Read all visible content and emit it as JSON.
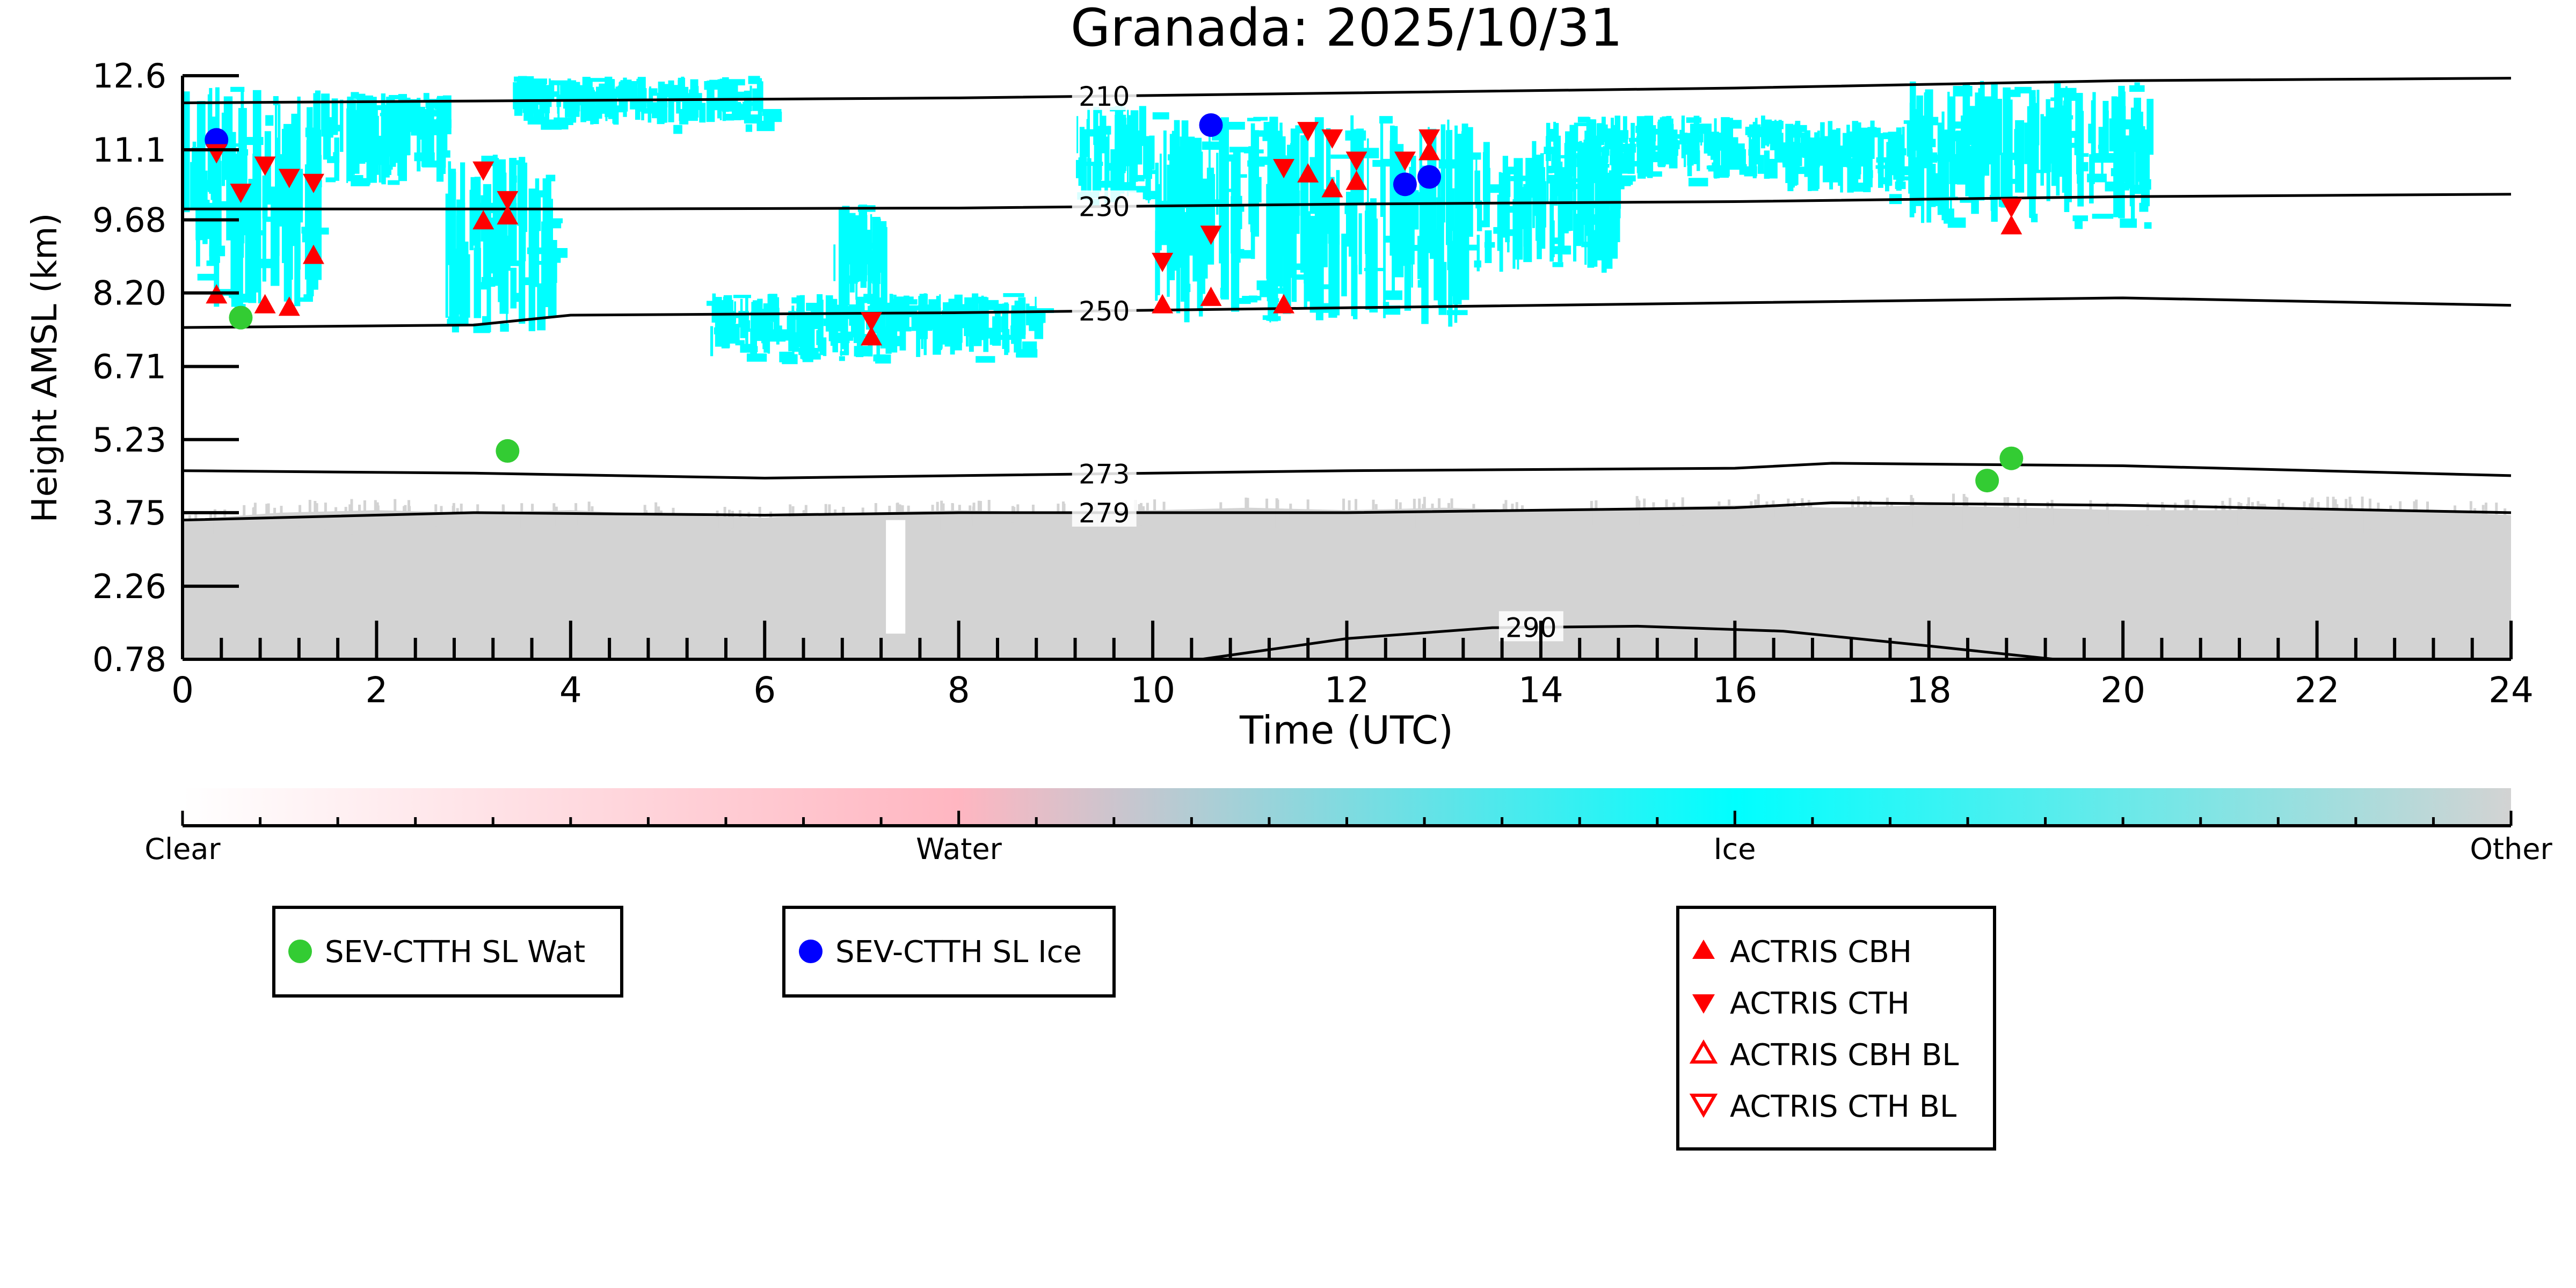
{
  "chart_data": {
    "type": "scatter",
    "title": "Granada: 2025/10/31",
    "xlabel": "Time (UTC)",
    "ylabel": "Height AMSL (km)",
    "xlim": [
      0,
      24
    ],
    "ylim": [
      0.78,
      12.6
    ],
    "x_ticks": [
      "0",
      "2",
      "4",
      "6",
      "8",
      "10",
      "12",
      "14",
      "16",
      "18",
      "20",
      "22",
      "24"
    ],
    "y_ticks": [
      "0.78",
      "2.26",
      "3.75",
      "5.23",
      "6.71",
      "8.20",
      "9.68",
      "11.1",
      "12.6"
    ],
    "y_tick_values": [
      0.78,
      2.26,
      3.75,
      5.23,
      6.71,
      8.2,
      9.68,
      11.1,
      12.6
    ],
    "grid": false,
    "background_classes": {
      "ice_color": "#00FFFF",
      "other_color": "#D3D3D3",
      "water_color": "#FFB6C1",
      "ice_regions": [
        {
          "x": [
            0.0,
            1.4
          ],
          "y": [
            7.9,
            12.4
          ]
        },
        {
          "x": [
            1.4,
            2.7
          ],
          "y": [
            10.4,
            12.3
          ]
        },
        {
          "x": [
            2.7,
            3.8
          ],
          "y": [
            7.4,
            11.0
          ]
        },
        {
          "x": [
            3.4,
            6.0
          ],
          "y": [
            11.6,
            12.6
          ]
        },
        {
          "x": [
            5.4,
            8.8
          ],
          "y": [
            6.9,
            8.2
          ]
        },
        {
          "x": [
            6.7,
            7.2
          ],
          "y": [
            7.8,
            10.0
          ]
        },
        {
          "x": [
            9.2,
            10.0
          ],
          "y": [
            10.0,
            12.0
          ]
        },
        {
          "x": [
            10.0,
            13.3
          ],
          "y": [
            7.5,
            11.8
          ]
        },
        {
          "x": [
            13.3,
            14.8
          ],
          "y": [
            8.6,
            11.3
          ]
        },
        {
          "x": [
            14.0,
            16.5
          ],
          "y": [
            10.5,
            11.8
          ]
        },
        {
          "x": [
            16.5,
            17.8
          ],
          "y": [
            10.2,
            11.7
          ]
        },
        {
          "x": [
            17.8,
            20.3
          ],
          "y": [
            9.6,
            12.5
          ]
        }
      ],
      "other_boundary": [
        {
          "x": 0.0,
          "y": 3.6
        },
        {
          "x": 1.0,
          "y": 3.75
        },
        {
          "x": 2.0,
          "y": 3.8
        },
        {
          "x": 3.0,
          "y": 3.75
        },
        {
          "x": 4.0,
          "y": 3.8
        },
        {
          "x": 5.0,
          "y": 3.7
        },
        {
          "x": 6.0,
          "y": 3.65
        },
        {
          "x": 7.0,
          "y": 3.75
        },
        {
          "x": 8.0,
          "y": 3.8
        },
        {
          "x": 9.0,
          "y": 3.75
        },
        {
          "x": 10.0,
          "y": 3.8
        },
        {
          "x": 11.0,
          "y": 3.85
        },
        {
          "x": 12.0,
          "y": 3.8
        },
        {
          "x": 13.0,
          "y": 3.85
        },
        {
          "x": 14.0,
          "y": 3.8
        },
        {
          "x": 15.0,
          "y": 3.85
        },
        {
          "x": 16.0,
          "y": 3.9
        },
        {
          "x": 17.0,
          "y": 3.85
        },
        {
          "x": 18.0,
          "y": 3.9
        },
        {
          "x": 19.0,
          "y": 3.85
        },
        {
          "x": 20.0,
          "y": 3.8
        },
        {
          "x": 21.0,
          "y": 3.8
        },
        {
          "x": 22.0,
          "y": 3.85
        },
        {
          "x": 23.0,
          "y": 3.8
        },
        {
          "x": 24.0,
          "y": 3.7
        }
      ],
      "other_gap": {
        "x": [
          7.25,
          7.45
        ],
        "y_top": 1.3
      }
    },
    "contours": [
      {
        "label": "210",
        "label_x": 9.5,
        "x": [
          0,
          4,
          8,
          12,
          16,
          20,
          24
        ],
        "y": [
          12.05,
          12.1,
          12.15,
          12.25,
          12.35,
          12.5,
          12.55
        ]
      },
      {
        "label": "230",
        "label_x": 9.5,
        "x": [
          0,
          4,
          8,
          12,
          16,
          20,
          24
        ],
        "y": [
          9.9,
          9.9,
          9.92,
          10.0,
          10.05,
          10.15,
          10.2
        ]
      },
      {
        "label": "250",
        "label_x": 9.5,
        "x": [
          0,
          3,
          4,
          8,
          12,
          16,
          20,
          24
        ],
        "y": [
          7.5,
          7.55,
          7.75,
          7.8,
          7.9,
          8.0,
          8.1,
          7.95
        ]
      },
      {
        "label": "273",
        "label_x": 9.5,
        "x": [
          0,
          3,
          6,
          8,
          12,
          16,
          17,
          20,
          24
        ],
        "y": [
          4.6,
          4.55,
          4.45,
          4.5,
          4.6,
          4.65,
          4.75,
          4.7,
          4.5
        ]
      },
      {
        "label": "279",
        "label_x": 9.5,
        "x": [
          0,
          3,
          6,
          8,
          12,
          16,
          17,
          20,
          24
        ],
        "y": [
          3.6,
          3.75,
          3.7,
          3.75,
          3.75,
          3.85,
          3.95,
          3.9,
          3.75
        ]
      },
      {
        "label": "290",
        "label_x": 13.9,
        "x": [
          10.5,
          12.0,
          13.5,
          15.0,
          16.5,
          18.0,
          19.3
        ],
        "y": [
          0.78,
          1.2,
          1.42,
          1.45,
          1.35,
          1.05,
          0.78
        ]
      }
    ],
    "series": [
      {
        "name": "SEV-CTTH SL Wat",
        "marker": "circle",
        "color": "#33CC33",
        "points": [
          {
            "x": 0.6,
            "y": 7.7
          },
          {
            "x": 3.35,
            "y": 5.0
          },
          {
            "x": 18.6,
            "y": 4.4
          },
          {
            "x": 18.85,
            "y": 4.85
          }
        ]
      },
      {
        "name": "SEV-CTTH SL Ice",
        "marker": "circle",
        "color": "#0000FF",
        "points": [
          {
            "x": 0.35,
            "y": 11.3
          },
          {
            "x": 10.6,
            "y": 11.6
          },
          {
            "x": 12.6,
            "y": 10.4
          },
          {
            "x": 12.85,
            "y": 10.55
          }
        ]
      },
      {
        "name": "ACTRIS CBH",
        "marker": "triangle-up",
        "color": "#FF0000",
        "points": [
          {
            "x": 0.35,
            "y": 8.15
          },
          {
            "x": 0.85,
            "y": 7.95
          },
          {
            "x": 1.1,
            "y": 7.9
          },
          {
            "x": 1.35,
            "y": 8.95
          },
          {
            "x": 3.1,
            "y": 9.65
          },
          {
            "x": 3.35,
            "y": 9.75
          },
          {
            "x": 7.1,
            "y": 7.3
          },
          {
            "x": 10.1,
            "y": 7.95
          },
          {
            "x": 10.6,
            "y": 8.1
          },
          {
            "x": 11.35,
            "y": 7.95
          },
          {
            "x": 11.6,
            "y": 10.6
          },
          {
            "x": 11.85,
            "y": 10.3
          },
          {
            "x": 12.1,
            "y": 10.45
          },
          {
            "x": 12.85,
            "y": 11.05
          },
          {
            "x": 18.85,
            "y": 9.55
          }
        ]
      },
      {
        "name": "ACTRIS CTH",
        "marker": "triangle-down",
        "color": "#FF0000",
        "points": [
          {
            "x": 0.35,
            "y": 11.05
          },
          {
            "x": 0.6,
            "y": 10.25
          },
          {
            "x": 0.85,
            "y": 10.8
          },
          {
            "x": 1.1,
            "y": 10.55
          },
          {
            "x": 1.35,
            "y": 10.45
          },
          {
            "x": 3.1,
            "y": 10.7
          },
          {
            "x": 3.35,
            "y": 10.1
          },
          {
            "x": 7.1,
            "y": 7.65
          },
          {
            "x": 10.1,
            "y": 8.85
          },
          {
            "x": 10.6,
            "y": 9.4
          },
          {
            "x": 11.35,
            "y": 10.75
          },
          {
            "x": 11.6,
            "y": 11.5
          },
          {
            "x": 11.85,
            "y": 11.35
          },
          {
            "x": 12.1,
            "y": 10.9
          },
          {
            "x": 12.6,
            "y": 10.9
          },
          {
            "x": 12.85,
            "y": 11.35
          },
          {
            "x": 18.85,
            "y": 9.95
          }
        ]
      },
      {
        "name": "ACTRIS CBH BL",
        "marker": "triangle-up-open",
        "color": "#FF0000",
        "points": []
      },
      {
        "name": "ACTRIS CTH BL",
        "marker": "triangle-down-open",
        "color": "#FF0000",
        "points": []
      }
    ],
    "colorbar": {
      "labels": [
        "Clear",
        "Water",
        "Ice",
        "Other"
      ],
      "stops": [
        {
          "position": 0.0,
          "color": "#FFFFFF"
        },
        {
          "position": 0.333,
          "color": "#FFB6C1"
        },
        {
          "position": 0.667,
          "color": "#00FFFF"
        },
        {
          "position": 1.0,
          "color": "#D3D3D3"
        }
      ]
    },
    "legends": [
      {
        "name": "SEV-CTTH SL Wat"
      },
      {
        "name": "SEV-CTTH SL Ice"
      },
      {
        "name": "ACTRIS CBH"
      },
      {
        "name": "ACTRIS CTH"
      },
      {
        "name": "ACTRIS CBH BL"
      },
      {
        "name": "ACTRIS CTH BL"
      }
    ]
  }
}
